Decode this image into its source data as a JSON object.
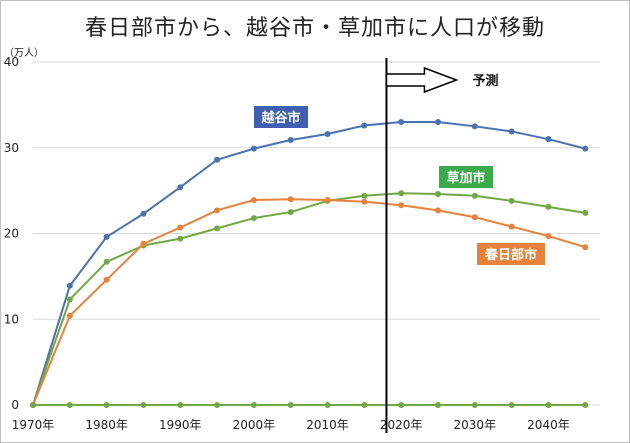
{
  "chart_data": {
    "type": "line",
    "title": "春日部市から、越谷市・草加市に人口が移動",
    "unit_label": "（万人）",
    "ylim": [
      0,
      40
    ],
    "yticks": [
      0,
      10,
      20,
      30,
      40
    ],
    "xlim": [
      1970,
      2047
    ],
    "xticks": [
      "1970年",
      "1980年",
      "1990年",
      "2000年",
      "2010年",
      "2020年",
      "2030年",
      "2040年"
    ],
    "xtick_values": [
      1970,
      1980,
      1990,
      2000,
      2010,
      2020,
      2030,
      2040
    ],
    "grid": true,
    "x": [
      1970,
      1975,
      1980,
      1985,
      1990,
      1995,
      2000,
      2005,
      2010,
      2015,
      2020,
      2025,
      2030,
      2035,
      2040,
      2045
    ],
    "series": [
      {
        "name": "越谷市",
        "color": "#4a72b0",
        "label_color": "#3f5fb0",
        "values": [
          0,
          13.9,
          19.6,
          22.3,
          25.4,
          28.6,
          29.9,
          30.9,
          31.6,
          32.6,
          33.0,
          33.0,
          32.5,
          31.9,
          31.0,
          29.9
        ]
      },
      {
        "name": "草加市",
        "color": "#70a845",
        "label_color": "#3aaa4a",
        "values": [
          0,
          12.3,
          16.7,
          18.6,
          19.4,
          20.6,
          21.8,
          22.5,
          23.8,
          24.4,
          24.7,
          24.6,
          24.4,
          23.8,
          23.1,
          22.4
        ]
      },
      {
        "name": "春日部市",
        "color": "#e8823a",
        "label_color": "#e8823a",
        "values": [
          0,
          10.4,
          14.6,
          18.8,
          20.7,
          22.7,
          23.9,
          24.0,
          23.9,
          23.7,
          23.3,
          22.7,
          21.9,
          20.8,
          19.7,
          18.4
        ]
      },
      {
        "name": "",
        "color": "#70a845",
        "values": [
          0,
          0,
          0,
          0,
          0,
          0,
          0,
          0,
          0,
          0,
          0,
          0,
          0,
          0,
          0,
          0
        ]
      }
    ],
    "divider_year": 2018,
    "prediction_label": "予測"
  }
}
